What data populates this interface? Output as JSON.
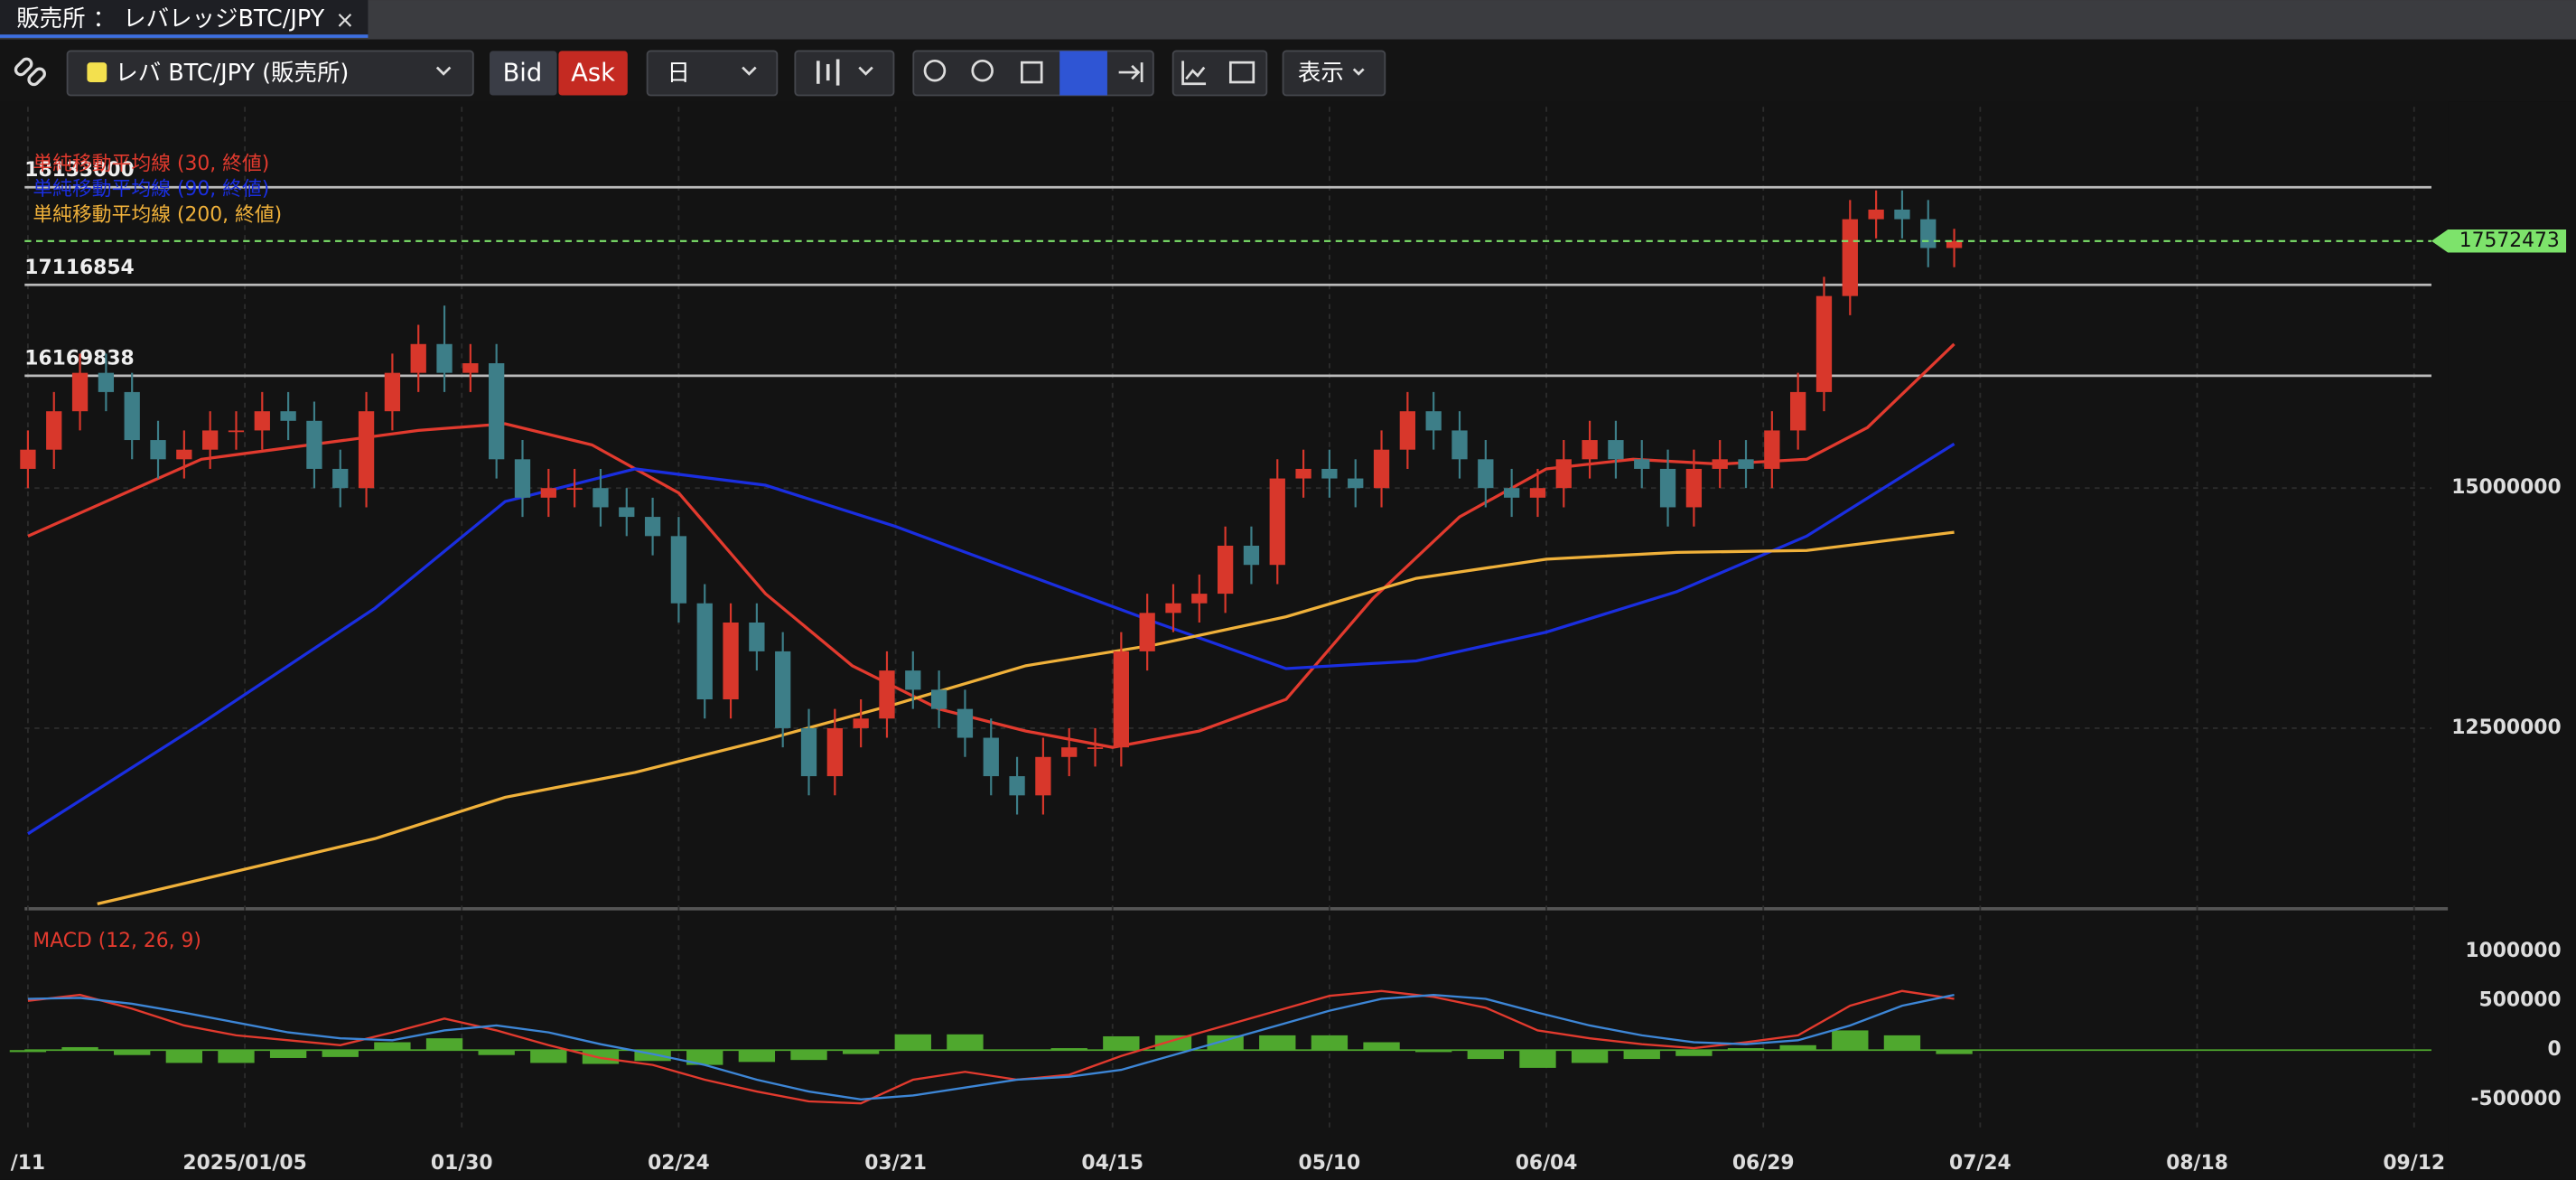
{
  "tab": {
    "title": "販売所 ： レバレッジBTC/JPY",
    "close": "×"
  },
  "toolbar": {
    "symbol": "レバ BTC/JPY (販売所)",
    "bid": "Bid",
    "ask": "Ask",
    "interval": "日",
    "display": "表示"
  },
  "chart_data": [
    {
      "type": "candlestick",
      "legend": [
        {
          "name": "単純移動平均線 (30, 終値)",
          "color": "#e23a2e"
        },
        {
          "name": "単純移動平均線 (90, 終値)",
          "color": "#1a2ee0"
        },
        {
          "name": "単純移動平均線 (200, 終値)",
          "color": "#f0b13a"
        }
      ],
      "up_color": "#d8372b",
      "down_color": "#3d7e88",
      "xlim": [
        0,
        277
      ],
      "xticks": [
        {
          "value": 0,
          "label": "/11"
        },
        {
          "value": 25,
          "label": "2025/01/05"
        },
        {
          "value": 50,
          "label": "01/30"
        },
        {
          "value": 75,
          "label": "02/24"
        },
        {
          "value": 100,
          "label": "03/21"
        },
        {
          "value": 125,
          "label": "04/15"
        },
        {
          "value": 150,
          "label": "05/10"
        },
        {
          "value": 175,
          "label": "06/04"
        },
        {
          "value": 200,
          "label": "06/29"
        },
        {
          "value": 225,
          "label": "07/24"
        },
        {
          "value": 250,
          "label": "08/18"
        },
        {
          "value": 275,
          "label": "09/12"
        }
      ],
      "ylim": [
        10670000,
        18970000
      ],
      "yticks": [
        12500000,
        15000000
      ],
      "grid": true,
      "x": [
        0,
        3,
        6,
        9,
        12,
        15,
        18,
        21,
        24,
        27,
        30,
        33,
        36,
        39,
        42,
        45,
        48,
        51,
        54,
        57,
        60,
        63,
        66,
        69,
        72,
        75,
        78,
        81,
        84,
        87,
        90,
        93,
        96,
        99,
        102,
        105,
        108,
        111,
        114,
        117,
        120,
        123,
        126,
        129,
        132,
        135,
        138,
        141,
        144,
        147,
        150,
        153,
        156,
        159,
        162,
        165,
        168,
        171,
        174,
        177,
        180,
        183,
        186,
        189,
        192,
        195,
        198,
        201,
        204,
        207,
        210,
        213,
        216,
        219,
        222
      ],
      "open": [
        15200000,
        15400000,
        15800000,
        16200000,
        16000000,
        15500000,
        15300000,
        15400000,
        15600000,
        15600000,
        15800000,
        15700000,
        15200000,
        15000000,
        15800000,
        16200000,
        16500000,
        16200000,
        16300000,
        15300000,
        14900000,
        15000000,
        15000000,
        14800000,
        14700000,
        14500000,
        13800000,
        12800000,
        13600000,
        13300000,
        12500000,
        12000000,
        12500000,
        12600000,
        13100000,
        12900000,
        12700000,
        12400000,
        12000000,
        11800000,
        12200000,
        12300000,
        12300000,
        13300000,
        13700000,
        13800000,
        13900000,
        14400000,
        14200000,
        15100000,
        15200000,
        15100000,
        15000000,
        15400000,
        15800000,
        15600000,
        15300000,
        15000000,
        14900000,
        15000000,
        15300000,
        15500000,
        15300000,
        15200000,
        14800000,
        15200000,
        15300000,
        15200000,
        15600000,
        16000000,
        17000000,
        17800000,
        17900000,
        17800000,
        17500000
      ],
      "high": [
        15600000,
        16000000,
        16400000,
        16400000,
        16200000,
        15700000,
        15600000,
        15800000,
        15800000,
        16000000,
        16000000,
        15900000,
        15400000,
        16000000,
        16400000,
        16700000,
        16900000,
        16500000,
        16500000,
        15500000,
        15200000,
        15200000,
        15200000,
        15000000,
        14900000,
        14700000,
        14000000,
        13800000,
        13800000,
        13500000,
        12700000,
        12700000,
        12800000,
        13300000,
        13300000,
        13100000,
        12900000,
        12600000,
        12200000,
        12400000,
        12500000,
        12500000,
        13500000,
        13900000,
        14000000,
        14100000,
        14600000,
        14600000,
        15300000,
        15400000,
        15400000,
        15300000,
        15600000,
        16000000,
        16000000,
        15800000,
        15500000,
        15200000,
        15200000,
        15500000,
        15700000,
        15700000,
        15500000,
        15400000,
        15400000,
        15500000,
        15500000,
        15800000,
        16200000,
        17200000,
        18000000,
        18100000,
        18100000,
        18000000,
        17700000
      ],
      "low": [
        15000000,
        15200000,
        15600000,
        15800000,
        15300000,
        15100000,
        15100000,
        15200000,
        15400000,
        15400000,
        15500000,
        15000000,
        14800000,
        14800000,
        15600000,
        16000000,
        16000000,
        16000000,
        15100000,
        14700000,
        14700000,
        14800000,
        14600000,
        14500000,
        14300000,
        13600000,
        12600000,
        12600000,
        13100000,
        12300000,
        11800000,
        11800000,
        12300000,
        12400000,
        12700000,
        12500000,
        12200000,
        11800000,
        11600000,
        11600000,
        12000000,
        12100000,
        12100000,
        13100000,
        13500000,
        13600000,
        13700000,
        14000000,
        14000000,
        14900000,
        14900000,
        14800000,
        14800000,
        15200000,
        15400000,
        15100000,
        14800000,
        14700000,
        14700000,
        14800000,
        15100000,
        15100000,
        15000000,
        14600000,
        14600000,
        15000000,
        15000000,
        15000000,
        15400000,
        15800000,
        16800000,
        17600000,
        17600000,
        17300000,
        17300000
      ],
      "close": [
        15400000,
        15800000,
        16200000,
        16000000,
        15500000,
        15300000,
        15400000,
        15600000,
        15600000,
        15800000,
        15700000,
        15200000,
        15000000,
        15800000,
        16200000,
        16500000,
        16200000,
        16300000,
        15300000,
        14900000,
        15000000,
        15000000,
        14800000,
        14700000,
        14500000,
        13800000,
        12800000,
        13600000,
        13300000,
        12500000,
        12000000,
        12500000,
        12600000,
        13100000,
        12900000,
        12700000,
        12400000,
        12000000,
        11800000,
        12200000,
        12300000,
        12300000,
        13300000,
        13700000,
        13800000,
        13900000,
        14400000,
        14200000,
        15100000,
        15200000,
        15100000,
        15000000,
        15400000,
        15800000,
        15600000,
        15300000,
        15000000,
        14900000,
        15000000,
        15300000,
        15500000,
        15300000,
        15200000,
        14800000,
        15200000,
        15300000,
        15200000,
        15600000,
        16000000,
        17000000,
        17800000,
        17900000,
        17800000,
        17500000,
        17572473
      ],
      "lines": [
        {
          "color": "#e23a2e",
          "x": [
            0,
            20,
            45,
            55,
            65,
            75,
            85,
            95,
            105,
            115,
            125,
            135,
            145,
            155,
            165,
            175,
            185,
            195,
            205,
            212,
            222
          ],
          "values": [
            14500000,
            15300000,
            15600000,
            15670000,
            15450000,
            14950000,
            13900000,
            13150000,
            12700000,
            12470000,
            12300000,
            12470000,
            12800000,
            13850000,
            14700000,
            15200000,
            15300000,
            15250000,
            15300000,
            15630000,
            16500000
          ]
        },
        {
          "color": "#1a2ee0",
          "x": [
            0,
            20,
            40,
            55,
            70,
            85,
            100,
            115,
            130,
            145,
            160,
            175,
            190,
            205,
            222
          ],
          "values": [
            11400000,
            12550000,
            13750000,
            14860000,
            15200000,
            15030000,
            14600000,
            14100000,
            13600000,
            13120000,
            13200000,
            13500000,
            13920000,
            14500000,
            15460000
          ]
        },
        {
          "color": "#f0b13a",
          "x": [
            8,
            40,
            55,
            70,
            85,
            100,
            115,
            130,
            145,
            160,
            175,
            190,
            205,
            222
          ],
          "values": [
            10670000,
            11350000,
            11780000,
            12040000,
            12380000,
            12750000,
            13150000,
            13370000,
            13660000,
            14060000,
            14260000,
            14330000,
            14350000,
            14540000
          ]
        }
      ],
      "levels": [
        18133000,
        17116854,
        16169838
      ],
      "last_price": 17572473,
      "last_color": "#7de36b"
    },
    {
      "type": "macd",
      "title": "MACD (12, 26, 9)",
      "xlim": [
        0,
        277
      ],
      "ylim": [
        -817000,
        1283000
      ],
      "yticks": [
        -500000,
        0,
        500000,
        1000000
      ],
      "x": [
        0,
        6,
        12,
        18,
        24,
        30,
        36,
        42,
        48,
        54,
        60,
        66,
        72,
        78,
        84,
        90,
        96,
        102,
        108,
        114,
        120,
        126,
        132,
        138,
        144,
        150,
        156,
        162,
        168,
        174,
        180,
        186,
        192,
        198,
        204,
        210,
        216,
        222
      ],
      "series": [
        {
          "color": "#e23a2e",
          "values": [
            500000,
            560000,
            420000,
            250000,
            150000,
            100000,
            50000,
            180000,
            320000,
            200000,
            50000,
            -80000,
            -150000,
            -300000,
            -420000,
            -520000,
            -540000,
            -300000,
            -220000,
            -300000,
            -250000,
            -60000,
            100000,
            250000,
            400000,
            550000,
            600000,
            540000,
            430000,
            200000,
            120000,
            60000,
            20000,
            80000,
            150000,
            450000,
            600000,
            520000
          ]
        },
        {
          "color": "#3d86d6",
          "values": [
            520000,
            530000,
            470000,
            380000,
            280000,
            180000,
            120000,
            100000,
            200000,
            250000,
            180000,
            60000,
            -40000,
            -150000,
            -300000,
            -420000,
            -500000,
            -460000,
            -380000,
            -300000,
            -270000,
            -200000,
            -50000,
            100000,
            250000,
            400000,
            520000,
            560000,
            520000,
            380000,
            250000,
            150000,
            80000,
            60000,
            100000,
            250000,
            450000,
            560000
          ]
        }
      ],
      "histogram": {
        "color": "#4fa82e",
        "values": [
          -20000,
          30000,
          -50000,
          -130000,
          -130000,
          -80000,
          -70000,
          80000,
          120000,
          -50000,
          -130000,
          -140000,
          -110000,
          -150000,
          -120000,
          -100000,
          -40000,
          160000,
          160000,
          0,
          20000,
          140000,
          150000,
          150000,
          150000,
          150000,
          80000,
          -20000,
          -90000,
          -180000,
          -130000,
          -90000,
          -60000,
          20000,
          50000,
          200000,
          150000,
          -40000
        ]
      }
    }
  ]
}
